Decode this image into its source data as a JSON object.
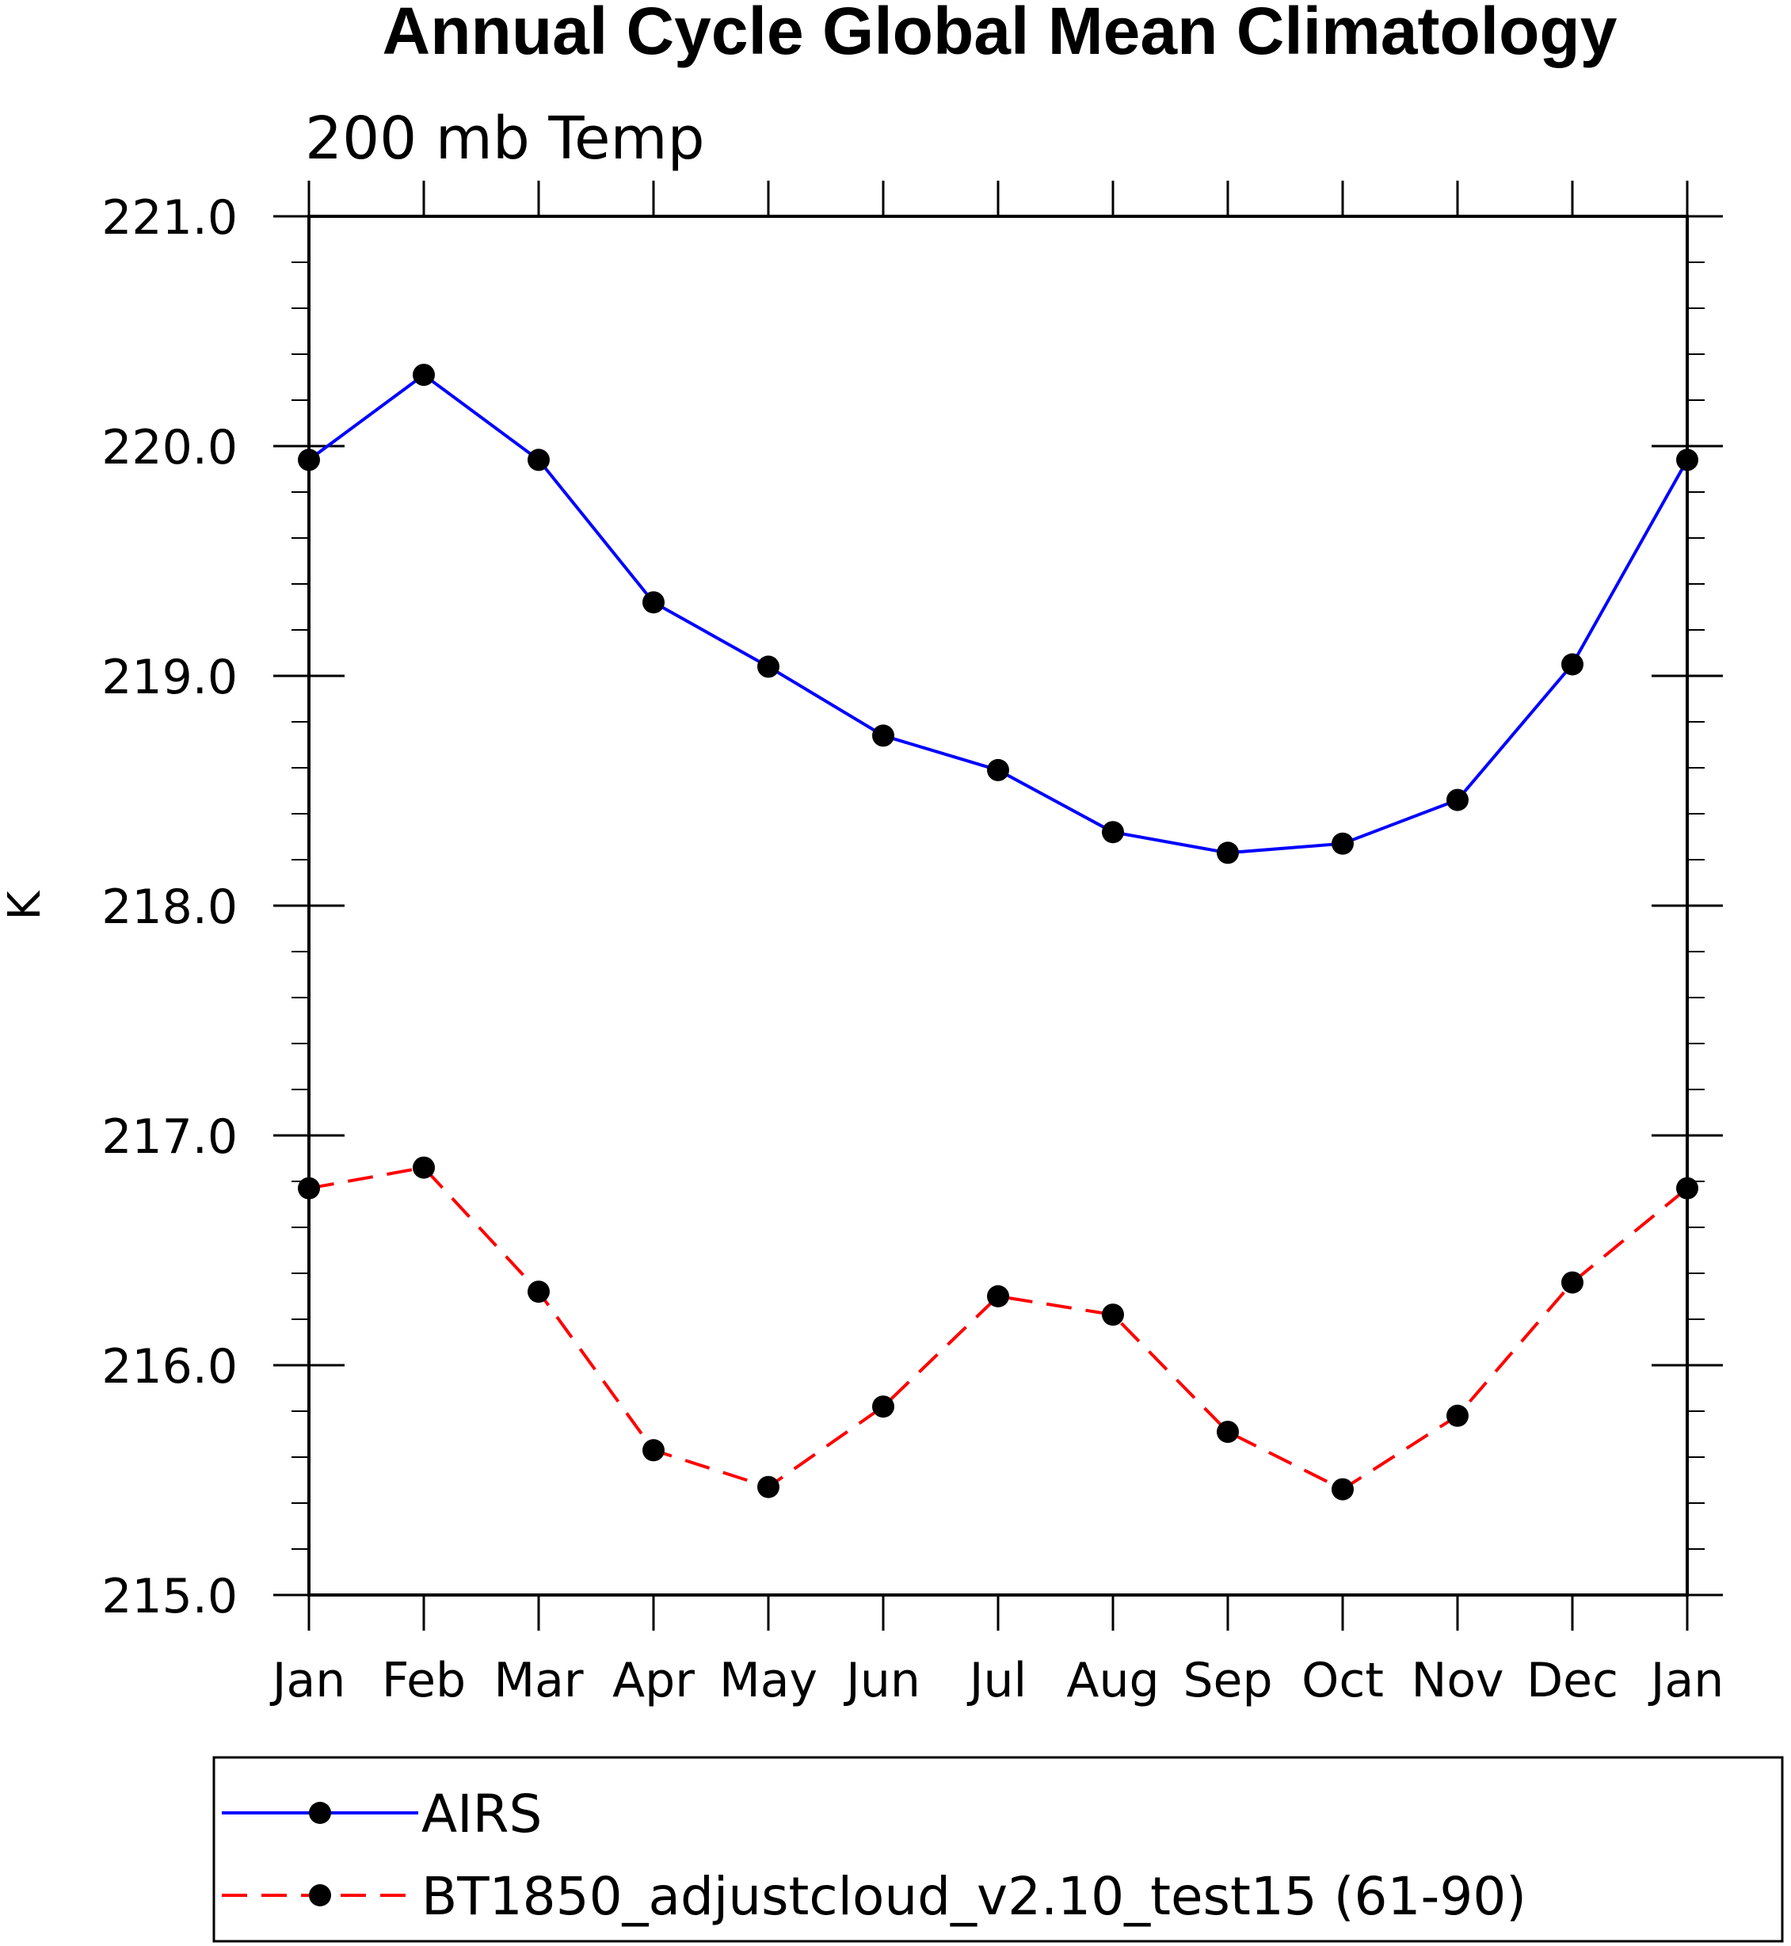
{
  "chart_data": {
    "type": "line",
    "title": "Annual Cycle Global Mean Climatology",
    "subtitle": "200 mb Temp",
    "ylabel": "K",
    "xlabel": "",
    "ylim": [
      215.0,
      221.0
    ],
    "y_major_ticks": [
      215.0,
      216.0,
      217.0,
      218.0,
      219.0,
      220.0,
      221.0
    ],
    "y_tick_labels": [
      "215.0",
      "216.0",
      "217.0",
      "218.0",
      "219.0",
      "220.0",
      "221.0"
    ],
    "y_minor_step": 0.2,
    "categories": [
      "Jan",
      "Feb",
      "Mar",
      "Apr",
      "May",
      "Jun",
      "Jul",
      "Aug",
      "Sep",
      "Oct",
      "Nov",
      "Dec",
      "Jan"
    ],
    "grid": false,
    "legend_position": "bottom",
    "series": [
      {
        "name": "AIRS",
        "color": "#0000ff",
        "line_style": "solid",
        "marker": "filled-circle",
        "values": [
          219.94,
          220.31,
          219.94,
          219.32,
          219.04,
          218.74,
          218.59,
          218.32,
          218.23,
          218.27,
          218.46,
          219.05,
          219.94
        ]
      },
      {
        "name": "BT1850_adjustcloud_v2.10_test15 (61-90)",
        "color": "#ff0000",
        "line_style": "dashed",
        "marker": "filled-circle",
        "values": [
          216.77,
          216.86,
          216.32,
          215.63,
          215.47,
          215.82,
          216.3,
          216.22,
          215.71,
          215.46,
          215.78,
          216.36,
          216.77
        ]
      }
    ]
  }
}
